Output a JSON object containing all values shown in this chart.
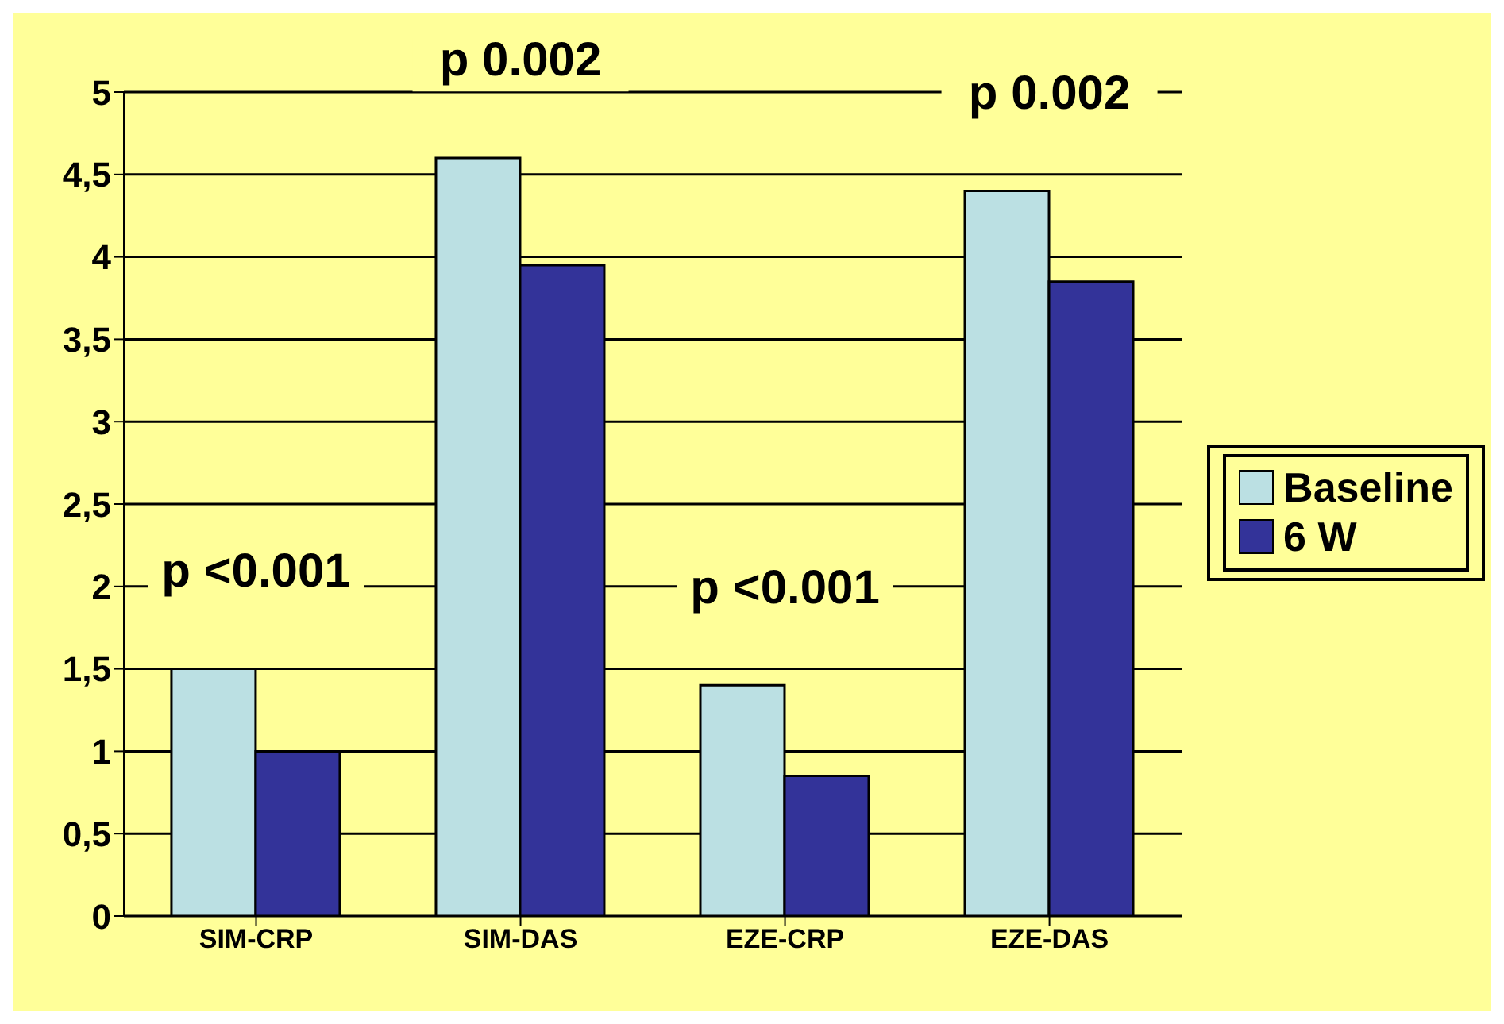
{
  "chart_data": {
    "type": "bar",
    "categories": [
      "SIM-CRP",
      "SIM-DAS",
      "EZE-CRP",
      "EZE-DAS"
    ],
    "series": [
      {
        "name": "Baseline",
        "color": "#bbe0e3",
        "values": [
          1.5,
          4.6,
          1.4,
          4.4
        ]
      },
      {
        "name": "6 W",
        "color": "#333399",
        "values": [
          1.0,
          3.95,
          0.85,
          3.85
        ]
      }
    ],
    "ylim": [
      0,
      5
    ],
    "yticks": [
      0,
      {
        "value": 0.5,
        "label": "0,5"
      },
      1,
      {
        "value": 1.5,
        "label": "1,5"
      },
      2,
      {
        "value": 2.5,
        "label": "2,5"
      },
      3,
      {
        "value": 3.5,
        "label": "3,5"
      },
      4,
      {
        "value": 4.5,
        "label": "4,5"
      },
      5
    ],
    "grid": "y",
    "legend": "right",
    "annotations": [
      "p <0.001",
      "p 0.002",
      "p <0.001",
      "p 0.002"
    ]
  }
}
